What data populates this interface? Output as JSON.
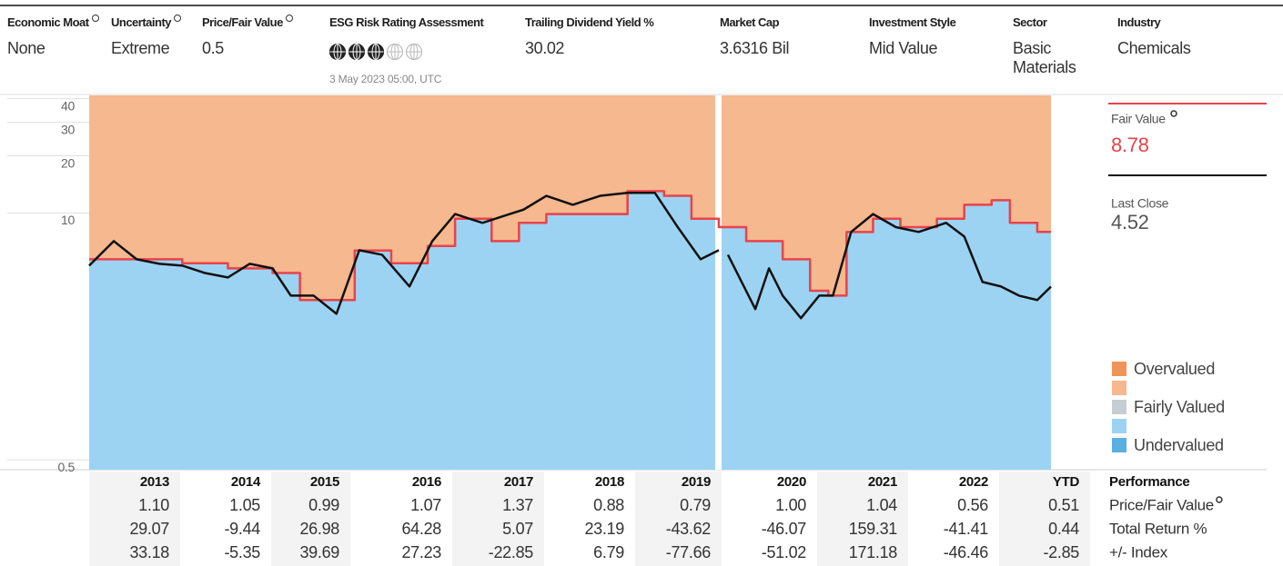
{
  "header": {
    "fields": [
      {
        "label": "Economic Moat",
        "value": "None",
        "info_icon": true
      },
      {
        "label": "Uncertainty",
        "value": "Extreme",
        "info_icon": true
      },
      {
        "label": "Price/Fair Value",
        "value": "0.5",
        "info_icon": true
      },
      {
        "label": "ESG Risk Rating Assessment",
        "globes_filled": 3,
        "globes_total": 5,
        "date": "3 May 2023 05:00, UTC"
      },
      {
        "label": "Trailing Dividend Yield %",
        "value": "30.02"
      },
      {
        "label": "Market Cap",
        "value": "3.6316 Bil"
      },
      {
        "label": "Investment Style",
        "value": "Mid Value"
      },
      {
        "label": "Sector",
        "value": "Basic Materials"
      },
      {
        "label": "Industry",
        "value": "Chemicals"
      }
    ]
  },
  "chart_data": {
    "type": "line",
    "log_scale": true,
    "xlim": [
      2012.8,
      2023.34
    ],
    "ylim": [
      0.49,
      46
    ],
    "yticks": [
      40,
      30,
      20,
      10,
      0.5
    ],
    "series": [
      {
        "name": "Fair Value",
        "color": "#e8434a",
        "step": true,
        "x": [
          2012.8,
          2013.82,
          2014.32,
          2014.81,
          2015.11,
          2015.41,
          2015.71,
          2016.11,
          2016.51,
          2016.81,
          2017.21,
          2017.51,
          2017.81,
          2018.3,
          2018.7,
          2019.1,
          2019.4,
          2019.7,
          2020.0,
          2020.4,
          2020.7,
          2020.9,
          2021.1,
          2021.39,
          2021.69,
          2022.09,
          2022.39,
          2022.69,
          2022.89,
          2023.19
        ],
        "values": [
          6.3,
          6.0,
          5.64,
          5.33,
          3.84,
          3.84,
          7.0,
          6.0,
          7.4,
          10.3,
          7.85,
          9.8,
          10.9,
          10.9,
          14.4,
          13.6,
          10.3,
          9.3,
          7.85,
          6.3,
          4.3,
          4.05,
          8.77,
          10.3,
          9.3,
          10.3,
          12.2,
          12.9,
          9.8,
          8.78
        ]
      },
      {
        "name": "Last Close",
        "color": "#111111",
        "x": [
          2012.8,
          2013.07,
          2013.32,
          2013.57,
          2013.82,
          2014.07,
          2014.32,
          2014.56,
          2014.81,
          2015.01,
          2015.26,
          2015.51,
          2015.76,
          2016.01,
          2016.31,
          2016.56,
          2016.81,
          2017.11,
          2017.41,
          2017.56,
          2017.81,
          2018.1,
          2018.4,
          2018.7,
          2019.0,
          2019.25,
          2019.5,
          2019.7,
          2019.75,
          2019.8,
          2020.1,
          2020.25,
          2020.4,
          2020.6,
          2020.8,
          2020.95,
          2021.15,
          2021.39,
          2021.64,
          2021.89,
          2022.19,
          2022.39,
          2022.59,
          2022.79,
          2022.99,
          2023.19,
          2023.34
        ],
        "values": [
          5.83,
          7.85,
          6.3,
          5.96,
          5.83,
          5.33,
          5.05,
          5.96,
          5.64,
          4.05,
          4.05,
          3.25,
          7.03,
          6.65,
          4.53,
          7.85,
          10.9,
          9.8,
          10.9,
          11.5,
          13.6,
          12.2,
          13.6,
          14.1,
          14.1,
          9.3,
          6.3,
          7.03,
          null,
          6.65,
          3.44,
          5.64,
          4.05,
          3.08,
          4.05,
          4.05,
          8.77,
          10.9,
          9.3,
          8.77,
          9.8,
          8.3,
          4.78,
          4.53,
          4.05,
          3.84,
          4.52
        ]
      }
    ],
    "legend": [
      {
        "label": "Overvalued",
        "color": "#f0955a"
      },
      {
        "label": null,
        "color": "#f5b88f"
      },
      {
        "label": "Fairly Valued",
        "color": "#c5ced3"
      },
      {
        "label": null,
        "color": "#9dd3f2"
      },
      {
        "label": "Undervalued",
        "color": "#5aaee0"
      }
    ]
  },
  "summary": {
    "fair_value": {
      "label": "Fair Value",
      "value": "8.78",
      "info_icon": true
    },
    "last_close": {
      "label": "Last Close",
      "value": "4.52"
    }
  },
  "table": {
    "header": "Performance",
    "columns": [
      "2013",
      "2014",
      "2015",
      "2016",
      "2017",
      "2018",
      "2019",
      "2020",
      "2021",
      "2022",
      "YTD"
    ],
    "rows": [
      {
        "label": "Price/Fair Value",
        "info_icon": true,
        "values": [
          "1.10",
          "1.05",
          "0.99",
          "1.07",
          "1.37",
          "0.88",
          "0.79",
          "1.00",
          "1.04",
          "0.56",
          "0.51"
        ]
      },
      {
        "label": "Total Return %",
        "values": [
          "29.07",
          "-9.44",
          "26.98",
          "64.28",
          "5.07",
          "23.19",
          "-43.62",
          "-46.07",
          "159.31",
          "-41.41",
          "0.44"
        ]
      },
      {
        "label": "+/- Index",
        "values": [
          "33.18",
          "-5.35",
          "39.69",
          "27.23",
          "-22.85",
          "6.79",
          "-77.66",
          "-51.02",
          "171.18",
          "-46.46",
          "-2.85"
        ]
      }
    ]
  }
}
